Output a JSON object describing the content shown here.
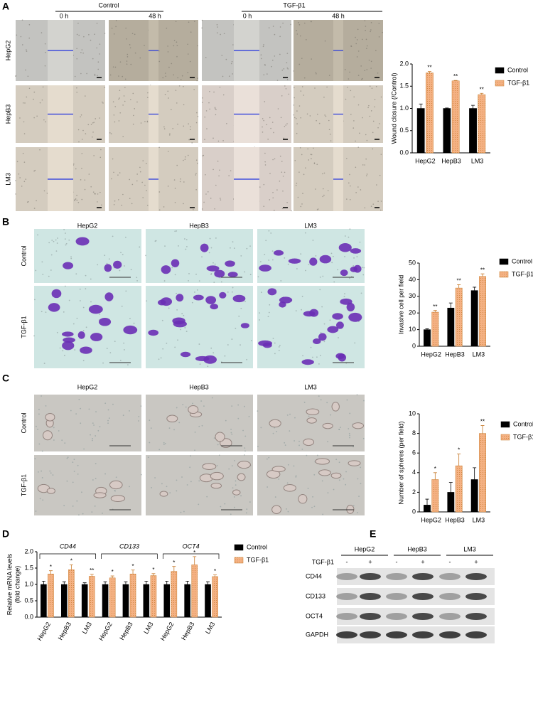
{
  "panel_labels": [
    "A",
    "B",
    "C",
    "D",
    "E"
  ],
  "panel_a": {
    "groups": [
      "Control",
      "TGF-β1"
    ],
    "times": [
      "0 h",
      "48 h",
      "0 h",
      "48 h"
    ],
    "rows": [
      "HepG2",
      "HepB3",
      "LM3"
    ]
  },
  "panel_b": {
    "columns": [
      "HepG2",
      "HepB3",
      "LM3"
    ],
    "rows": [
      "Control",
      "TGF-β1"
    ]
  },
  "panel_c": {
    "columns": [
      "HepG2",
      "HepB3",
      "LM3"
    ],
    "rows": [
      "Control",
      "TGF-β1"
    ]
  },
  "panel_e": {
    "groups": [
      "HepG2",
      "HepB3",
      "LM3"
    ],
    "treatment": "TGF-β1",
    "signs": [
      "-",
      "+",
      "-",
      "+",
      "-",
      "+"
    ],
    "proteins": [
      "CD44",
      "CD133",
      "OCT4",
      "GAPDH"
    ]
  },
  "chart_data": [
    {
      "type": "bar",
      "ylabel": "Wound closure (/Control)",
      "categories": [
        "HepG2",
        "HepB3",
        "LM3"
      ],
      "series": [
        {
          "name": "Control",
          "color": "#000000",
          "values": [
            1.0,
            1.0,
            1.0
          ],
          "errors": [
            0.1,
            0.01,
            0.07
          ]
        },
        {
          "name": "TGF-β1",
          "color": "#f4b183",
          "values": [
            1.8,
            1.62,
            1.31
          ],
          "errors": [
            0.03,
            0.01,
            0.03
          ],
          "sig": [
            "**",
            "**",
            "**"
          ]
        }
      ],
      "ylim": [
        0,
        2
      ],
      "yticks": [
        {
          "value": 0,
          "label": "0.0"
        },
        {
          "value": 0.5,
          "label": "0.5"
        },
        {
          "value": 1,
          "label": "1.0"
        },
        {
          "value": 1.5,
          "label": "1.5"
        },
        {
          "value": 2,
          "label": "2.0"
        }
      ],
      "grid": false,
      "legend": "right"
    },
    {
      "type": "bar",
      "ylabel": "Invasive cell per field",
      "categories": [
        "HepG2",
        "HepB3",
        "LM3"
      ],
      "series": [
        {
          "name": "Control",
          "color": "#000000",
          "values": [
            10,
            23,
            33.5
          ],
          "errors": [
            0.5,
            3,
            2
          ]
        },
        {
          "name": "TGF-β1",
          "color": "#f4b183",
          "values": [
            20.5,
            35,
            42
          ],
          "errors": [
            1,
            2,
            1.5
          ],
          "sig": [
            "**",
            "**",
            "**"
          ]
        }
      ],
      "ylim": [
        0,
        50
      ],
      "yticks": [
        0,
        10,
        20,
        30,
        40,
        50
      ],
      "grid": false,
      "legend": "right"
    },
    {
      "type": "bar",
      "ylabel": "Number of spheres (per field)",
      "categories": [
        "HepG2",
        "HepB3",
        "LM3"
      ],
      "series": [
        {
          "name": "Control",
          "color": "#000000",
          "values": [
            0.7,
            2,
            3.3
          ],
          "errors": [
            0.6,
            1,
            1.2
          ]
        },
        {
          "name": "TGF-β1",
          "color": "#f4b183",
          "values": [
            3.3,
            4.7,
            8
          ],
          "errors": [
            0.7,
            1.2,
            0.8
          ],
          "sig": [
            "*",
            "*",
            "**"
          ]
        }
      ],
      "ylim": [
        0,
        10
      ],
      "yticks": [
        0,
        2,
        4,
        6,
        8,
        10
      ],
      "grid": false,
      "legend": "right"
    },
    {
      "type": "bar",
      "ylabel": [
        "Relative mRNA levels",
        "(fold change)"
      ],
      "groups": [
        "CD44",
        "CD133",
        "OCT4"
      ],
      "categories": [
        "HepG2",
        "HepB3",
        "LM3",
        "HepG2",
        "HepB3",
        "LM3",
        "HepG2",
        "HepB3",
        "LM3"
      ],
      "series": [
        {
          "name": "Control",
          "color": "#000000",
          "values": [
            1.0,
            1.0,
            1.0,
            1.0,
            1.0,
            1.0,
            1.0,
            1.0,
            1.0
          ],
          "errors": [
            0.1,
            0.08,
            0.05,
            0.08,
            0.08,
            0.1,
            0.1,
            0.1,
            0.08
          ]
        },
        {
          "name": "TGF-β1",
          "color": "#f4b183",
          "values": [
            1.32,
            1.45,
            1.25,
            1.2,
            1.32,
            1.27,
            1.4,
            1.6,
            1.24
          ],
          "errors": [
            0.1,
            0.15,
            0.06,
            0.06,
            0.12,
            0.06,
            0.15,
            0.25,
            0.05
          ],
          "sig": [
            "*",
            "*",
            "**",
            "*",
            "*",
            "*",
            "*",
            "*",
            "*"
          ]
        }
      ],
      "ylim": [
        0,
        2
      ],
      "yticks": [
        {
          "value": 0,
          "label": "0.0"
        },
        {
          "value": 0.5,
          "label": "0.5"
        },
        {
          "value": 1,
          "label": "1.0"
        },
        {
          "value": 1.5,
          "label": "1.5"
        },
        {
          "value": 2,
          "label": "2.0"
        }
      ],
      "grid": false,
      "legend": "right"
    }
  ]
}
